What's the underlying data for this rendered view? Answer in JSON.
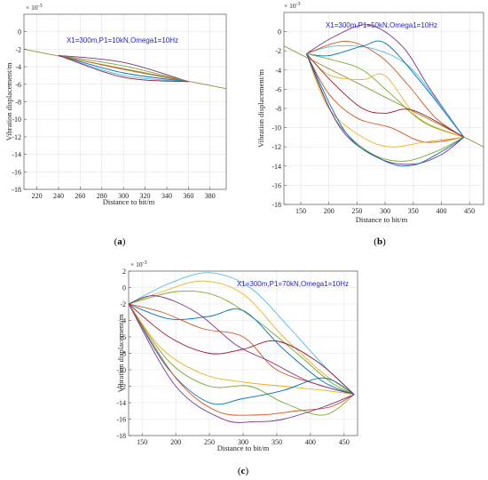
{
  "chart_data": [
    {
      "type": "line",
      "panel_label": "(a)",
      "annotation": "X1=300m,P1=10kN,Omega1=10Hz",
      "multiplier": "× 10^-3",
      "xlabel": "Distance to bit/m",
      "ylabel": "Vibration displacement/m",
      "xlim": [
        208,
        395
      ],
      "ylim": [
        -18,
        2
      ],
      "xticks": [
        220,
        240,
        260,
        280,
        300,
        320,
        340,
        360,
        380
      ],
      "yticks": [
        0,
        -2,
        -4,
        -6,
        -8,
        -10,
        -12,
        -14,
        -16,
        -18
      ],
      "grid": true,
      "envelope_line": {
        "x": [
          208,
          395
        ],
        "y": [
          -2.0,
          -6.5
        ]
      },
      "series": [
        {
          "color": "#7e2f8e",
          "x": [
            240,
            300,
            360
          ],
          "y": [
            -2.7,
            -3.5,
            -5.7
          ]
        },
        {
          "color": "#77ac30",
          "x": [
            240,
            300,
            360
          ],
          "y": [
            -2.7,
            -3.9,
            -5.7
          ]
        },
        {
          "color": "#d95319",
          "x": [
            240,
            300,
            360
          ],
          "y": [
            -2.7,
            -4.3,
            -5.7
          ]
        },
        {
          "color": "#0072bd",
          "x": [
            240,
            300,
            360
          ],
          "y": [
            -2.7,
            -4.7,
            -5.7
          ]
        },
        {
          "color": "#4dbeee",
          "x": [
            240,
            300,
            360
          ],
          "y": [
            -2.7,
            -5.0,
            -5.7
          ]
        },
        {
          "color": "#a2142f",
          "x": [
            240,
            300,
            360
          ],
          "y": [
            -2.7,
            -5.2,
            -5.7
          ]
        }
      ]
    },
    {
      "type": "line",
      "panel_label": "(b)",
      "annotation": "X1=300m,P1=50kN,Omega1=10Hz",
      "multiplier": "× 10^-3",
      "xlabel": "Distance to bit/m",
      "ylabel": "Vibration displacement/m",
      "xlim": [
        120,
        475
      ],
      "ylim": [
        -18,
        2
      ],
      "xticks": [
        150,
        200,
        250,
        300,
        350,
        400,
        450
      ],
      "yticks": [
        0,
        -2,
        -4,
        -6,
        -8,
        -10,
        -12,
        -14,
        -16,
        -18
      ],
      "grid": true,
      "envelope_line": {
        "x": [
          120,
          475
        ],
        "y": [
          -1.5,
          -12.0
        ]
      },
      "series": [
        {
          "color": "#7e2f8e",
          "x": [
            160,
            210,
            270,
            330,
            380,
            440
          ],
          "y": [
            -2.3,
            -0.5,
            0.7,
            -1.5,
            -6.0,
            -11.0
          ]
        },
        {
          "color": "#4dbeee",
          "x": [
            160,
            210,
            280,
            340,
            390,
            440
          ],
          "y": [
            -2.3,
            -1.5,
            -1.8,
            -3.5,
            -7.0,
            -11.0
          ]
        },
        {
          "color": "#d95319",
          "x": [
            160,
            230,
            290,
            340,
            390,
            440
          ],
          "y": [
            -2.3,
            -1.0,
            -2.5,
            -5.5,
            -9.0,
            -11.0
          ]
        },
        {
          "color": "#0072bd",
          "x": [
            160,
            200,
            260,
            300,
            360,
            440
          ],
          "y": [
            -2.3,
            -2.5,
            -1.5,
            -1.2,
            -5.0,
            -11.0
          ]
        },
        {
          "color": "#77ac30",
          "x": [
            160,
            210,
            260,
            310,
            370,
            440
          ],
          "y": [
            -2.3,
            -3.0,
            -4.0,
            -6.5,
            -9.5,
            -11.0
          ]
        },
        {
          "color": "#edb120",
          "x": [
            160,
            200,
            260,
            300,
            360,
            440
          ],
          "y": [
            -2.3,
            -4.5,
            -5.0,
            -4.6,
            -9.0,
            -11.0
          ]
        },
        {
          "color": "#a2142f",
          "x": [
            160,
            210,
            260,
            300,
            350,
            440
          ],
          "y": [
            -2.3,
            -5.5,
            -8.0,
            -8.5,
            -8.2,
            -11.0
          ]
        },
        {
          "color": "#d95319",
          "x": [
            160,
            200,
            250,
            310,
            370,
            440
          ],
          "y": [
            -2.3,
            -6.5,
            -9.0,
            -10.0,
            -11.5,
            -11.0
          ]
        },
        {
          "color": "#edb120",
          "x": [
            160,
            200,
            260,
            310,
            370,
            440
          ],
          "y": [
            -2.3,
            -8.0,
            -11.0,
            -12.0,
            -11.5,
            -11.0
          ]
        },
        {
          "color": "#77ac30",
          "x": [
            160,
            210,
            270,
            330,
            390,
            440
          ],
          "y": [
            -2.3,
            -9.0,
            -12.5,
            -13.5,
            -12.5,
            -11.0
          ]
        },
        {
          "color": "#7e2f8e",
          "x": [
            160,
            220,
            290,
            350,
            400,
            440
          ],
          "y": [
            -2.3,
            -10.0,
            -13.2,
            -13.8,
            -12.8,
            -11.0
          ]
        },
        {
          "color": "#0072bd",
          "x": [
            160,
            230,
            300,
            350,
            400,
            440
          ],
          "y": [
            -2.3,
            -10.5,
            -13.5,
            -13.9,
            -12.5,
            -11.0
          ]
        }
      ]
    },
    {
      "type": "line",
      "panel_label": "(c)",
      "annotation": "X1=300m,P1=70kN,Omega1=10Hz",
      "multiplier": "× 10^-3",
      "xlabel": "Distance to bit/m",
      "ylabel": "Vibration displacement/m",
      "xlim": [
        130,
        470
      ],
      "ylim": [
        -18,
        2
      ],
      "xticks": [
        150,
        200,
        250,
        300,
        350,
        400,
        450
      ],
      "yticks": [
        2,
        0,
        -2,
        -4,
        -6,
        -8,
        -10,
        -12,
        -14,
        -16,
        -18
      ],
      "grid": true,
      "series": [
        {
          "color": "#4dbeee",
          "x": [
            130,
            190,
            250,
            310,
            370,
            420,
            465
          ],
          "y": [
            -2.0,
            0.5,
            1.8,
            0.0,
            -5.0,
            -9.5,
            -13.0
          ]
        },
        {
          "color": "#edb120",
          "x": [
            130,
            180,
            240,
            300,
            360,
            420,
            465
          ],
          "y": [
            -2.0,
            -0.5,
            0.8,
            -0.8,
            -6.0,
            -10.5,
            -13.0
          ]
        },
        {
          "color": "#77ac30",
          "x": [
            130,
            200,
            260,
            320,
            380,
            430,
            465
          ],
          "y": [
            -2.0,
            -0.5,
            -1.0,
            -4.0,
            -8.0,
            -11.5,
            -13.0
          ]
        },
        {
          "color": "#0072bd",
          "x": [
            130,
            190,
            250,
            300,
            360,
            420,
            465
          ],
          "y": [
            -2.0,
            -3.8,
            -3.5,
            -2.8,
            -7.5,
            -11.5,
            -13.0
          ]
        },
        {
          "color": "#d95319",
          "x": [
            130,
            180,
            240,
            300,
            350,
            420,
            465
          ],
          "y": [
            -2.0,
            -3.0,
            -5.0,
            -6.0,
            -10.0,
            -12.0,
            -13.0
          ]
        },
        {
          "color": "#7e2f8e",
          "x": [
            130,
            170,
            230,
            290,
            340,
            400,
            465
          ],
          "y": [
            -2.0,
            -1.0,
            -3.0,
            -7.0,
            -9.0,
            -11.5,
            -13.0
          ]
        },
        {
          "color": "#a2142f",
          "x": [
            130,
            190,
            250,
            300,
            350,
            410,
            465
          ],
          "y": [
            -2.0,
            -6.0,
            -8.0,
            -7.5,
            -6.5,
            -9.0,
            -13.0
          ]
        },
        {
          "color": "#edb120",
          "x": [
            130,
            180,
            240,
            300,
            360,
            420,
            465
          ],
          "y": [
            -2.0,
            -7.5,
            -10.5,
            -11.5,
            -12.0,
            -12.5,
            -13.0
          ]
        },
        {
          "color": "#77ac30",
          "x": [
            130,
            190,
            250,
            310,
            360,
            420,
            465
          ],
          "y": [
            -2.0,
            -9.0,
            -12.0,
            -12.0,
            -14.0,
            -15.5,
            -13.0
          ]
        },
        {
          "color": "#0072bd",
          "x": [
            130,
            190,
            250,
            300,
            360,
            420,
            465
          ],
          "y": [
            -2.0,
            -10.0,
            -14.0,
            -13.5,
            -12.5,
            -11.0,
            -13.0
          ]
        },
        {
          "color": "#d95319",
          "x": [
            130,
            200,
            260,
            320,
            380,
            430,
            465
          ],
          "y": [
            -2.0,
            -11.0,
            -15.0,
            -15.5,
            -15.0,
            -14.5,
            -13.0
          ]
        },
        {
          "color": "#7e2f8e",
          "x": [
            130,
            200,
            270,
            320,
            360,
            420,
            465
          ],
          "y": [
            -2.0,
            -12.0,
            -16.0,
            -16.3,
            -16.0,
            -14.5,
            -13.0
          ]
        }
      ]
    }
  ]
}
